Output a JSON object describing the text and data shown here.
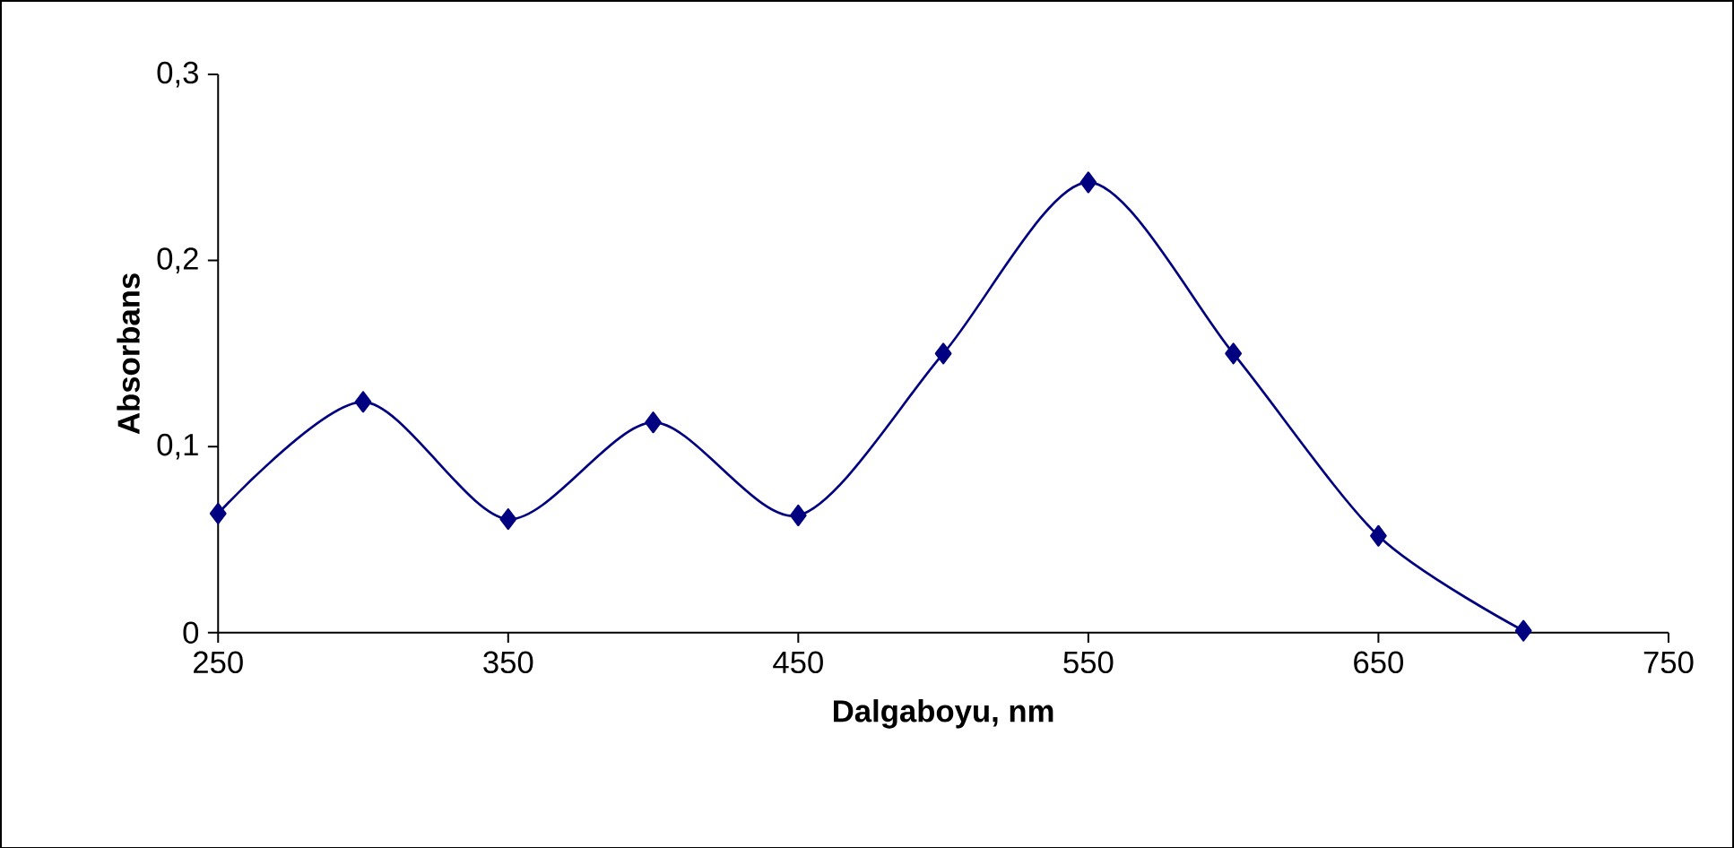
{
  "chart_data": {
    "type": "line",
    "xlabel": "Dalgaboyu, nm",
    "ylabel": "Absorbans",
    "x": [
      250,
      300,
      350,
      400,
      450,
      500,
      550,
      600,
      650,
      700
    ],
    "series": [
      {
        "color": "#000080",
        "values": [
          0.064,
          0.124,
          0.061,
          0.113,
          0.063,
          0.15,
          0.242,
          0.15,
          0.052,
          0.001
        ]
      }
    ],
    "xlim": [
      250,
      750
    ],
    "xticks": [
      250,
      350,
      450,
      550,
      650,
      750
    ],
    "ylim": [
      0,
      0.3
    ],
    "yticks": [
      0,
      {
        "value": 0.1,
        "label": "0,1"
      },
      {
        "value": 0.2,
        "label": "0,2"
      },
      {
        "value": 0.3,
        "label": "0,3"
      }
    ],
    "grid": false,
    "marker": "diamond",
    "line_style": "solid"
  }
}
